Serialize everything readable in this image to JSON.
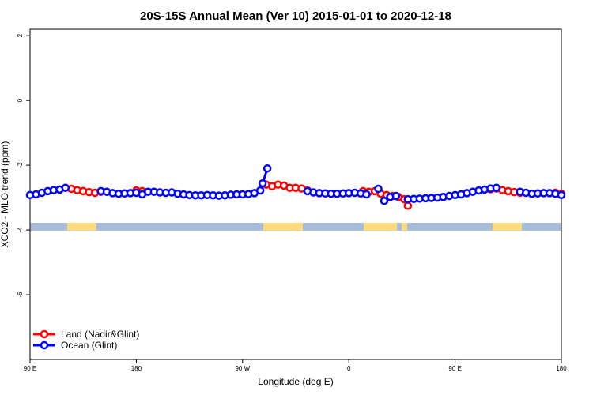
{
  "chart_data": {
    "type": "line",
    "title": "20S-15S Annual Mean (Ver 10)   2015-01-01 to 2020-12-18",
    "xlabel": "Longitude (deg E)",
    "ylabel": "XCO2 - MLO trend (ppm)",
    "xlim": [
      90,
      540
    ],
    "ylim": [
      -8,
      2.2
    ],
    "xticks": [
      {
        "value": 90,
        "label": "90 E"
      },
      180,
      {
        "value": 270,
        "label": "90 W"
      },
      {
        "value": 360,
        "label": "0"
      },
      {
        "value": 450,
        "label": "90 E"
      },
      {
        "value": 540,
        "label": "180"
      }
    ],
    "yticks": [
      -6,
      -4,
      -2,
      0,
      2
    ],
    "legend": "bottom-left",
    "surface_strip": {
      "ylim": [
        -4.02,
        -3.78
      ],
      "ocean_color": "#a7bcd9",
      "land_color": "#fddb7c",
      "land": [
        [
          121.5,
          146
        ],
        [
          287.5,
          321
        ],
        [
          372.6,
          400.7
        ],
        [
          404.7,
          409.4
        ],
        [
          481.7,
          506.5
        ]
      ]
    },
    "series": [
      {
        "name": "Land (Nadir&Glint)",
        "color": "#ff0000",
        "x": [
          125,
          130,
          135,
          140,
          145,
          150,
          155,
          180,
          185,
          190,
          290,
          295,
          300,
          305,
          310,
          315,
          320,
          325,
          330,
          372,
          377,
          382,
          387,
          392,
          397,
          402,
          407,
          410,
          415,
          480,
          485,
          490,
          495,
          500,
          505,
          510,
          535,
          540
        ],
        "values": [
          -2.73,
          -2.77,
          -2.8,
          -2.83,
          -2.85,
          -2.82,
          null,
          -2.78,
          -2.8,
          null,
          -2.6,
          -2.65,
          -2.6,
          -2.63,
          -2.7,
          -2.7,
          -2.72,
          -2.78,
          null,
          -2.8,
          -2.82,
          -2.8,
          -2.88,
          -2.92,
          -2.95,
          -2.98,
          -3.05,
          -3.25,
          null,
          -2.74,
          -2.72,
          -2.77,
          -2.8,
          -2.83,
          -2.85,
          null,
          -2.85,
          -2.88
        ]
      },
      {
        "name": "Ocean (Glint)",
        "color": "#0000ff",
        "x": [
          90,
          95,
          100,
          105,
          110,
          115,
          120,
          125,
          150,
          155,
          160,
          165,
          170,
          175,
          180,
          185,
          190,
          195,
          200,
          205,
          210,
          215,
          220,
          225,
          230,
          235,
          240,
          245,
          250,
          255,
          260,
          265,
          270,
          275,
          280,
          285,
          287,
          291,
          295,
          325,
          330,
          335,
          340,
          345,
          350,
          355,
          360,
          365,
          370,
          375,
          380,
          385,
          390,
          395,
          400,
          405,
          410,
          415,
          420,
          425,
          430,
          435,
          440,
          445,
          450,
          455,
          460,
          465,
          470,
          475,
          480,
          485,
          490,
          505,
          510,
          515,
          520,
          525,
          530,
          535,
          540
        ],
        "values": [
          -2.92,
          -2.9,
          -2.85,
          -2.8,
          -2.77,
          -2.75,
          -2.7,
          null,
          -2.8,
          -2.82,
          -2.86,
          -2.88,
          -2.87,
          -2.86,
          -2.85,
          -2.9,
          -2.82,
          -2.82,
          -2.84,
          -2.85,
          -2.84,
          -2.88,
          -2.9,
          -2.92,
          -2.93,
          -2.93,
          -2.92,
          -2.93,
          -2.94,
          -2.93,
          -2.91,
          -2.9,
          -2.9,
          -2.89,
          -2.86,
          -2.78,
          -2.56,
          -2.1,
          null,
          -2.8,
          -2.84,
          -2.86,
          -2.87,
          -2.88,
          -2.88,
          -2.87,
          -2.86,
          -2.85,
          -2.87,
          -2.9,
          null,
          -2.73,
          -3.1,
          -2.98,
          -2.95,
          null,
          -3.05,
          -3.04,
          -3.03,
          -3.02,
          -3.01,
          -3.0,
          -2.98,
          -2.95,
          -2.92,
          -2.9,
          -2.86,
          -2.82,
          -2.78,
          -2.75,
          -2.72,
          -2.7,
          null,
          -2.82,
          -2.85,
          -2.88,
          -2.87,
          -2.86,
          -2.86,
          -2.88,
          -2.92
        ]
      }
    ]
  }
}
